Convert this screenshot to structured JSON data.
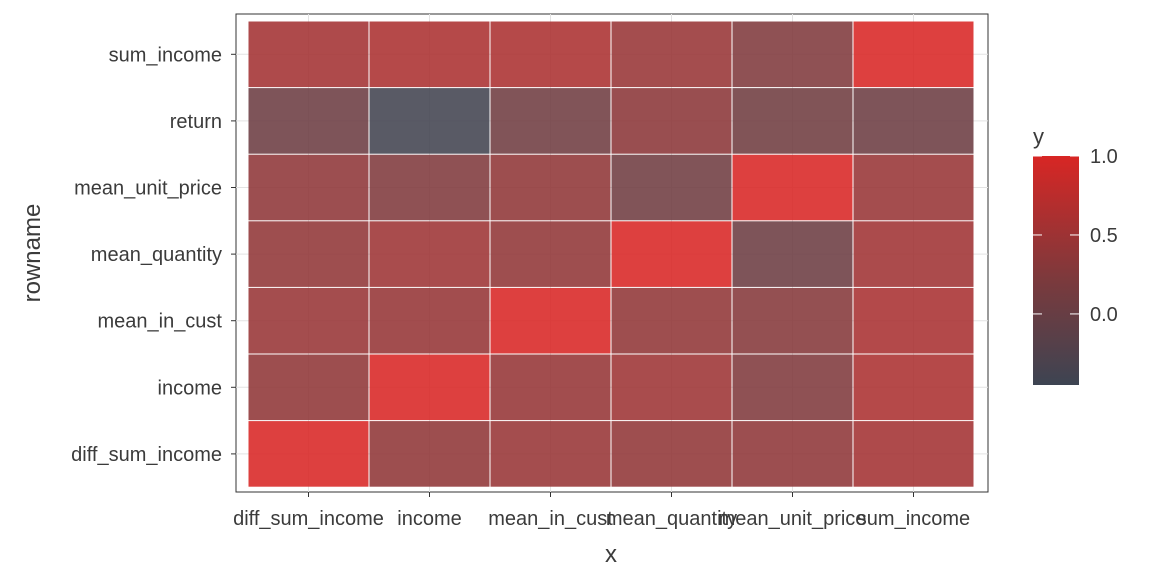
{
  "chart_data": {
    "type": "heatmap",
    "xlabel": "x",
    "ylabel": "rowname",
    "x_categories": [
      "diff_sum_income",
      "income",
      "mean_in_cust",
      "mean_quantity",
      "mean_unit_price",
      "sum_income"
    ],
    "y_categories": [
      "diff_sum_income",
      "income",
      "mean_in_cust",
      "mean_quantity",
      "mean_unit_price",
      "return",
      "sum_income"
    ],
    "values": [
      [
        1.0,
        0.38,
        0.45,
        0.4,
        0.37,
        0.55
      ],
      [
        0.38,
        1.0,
        0.43,
        0.5,
        0.25,
        0.62
      ],
      [
        0.45,
        0.43,
        1.0,
        0.4,
        0.3,
        0.6
      ],
      [
        0.4,
        0.5,
        0.4,
        1.0,
        0.05,
        0.52
      ],
      [
        0.37,
        0.25,
        0.38,
        0.08,
        1.0,
        0.45
      ],
      [
        0.05,
        -0.4,
        0.08,
        0.35,
        0.1,
        0.05
      ],
      [
        0.55,
        0.62,
        0.62,
        0.45,
        0.25,
        1.0
      ]
    ],
    "legend": {
      "title": "y",
      "ticks": [
        1.0,
        0.5,
        0.0
      ],
      "tick_labels": [
        "1.0",
        "0.5",
        "0.0"
      ],
      "range": [
        -0.45,
        1.0
      ],
      "placement": "right"
    },
    "color_low": "#3d4452",
    "color_high": "#d82624",
    "grid": true
  }
}
